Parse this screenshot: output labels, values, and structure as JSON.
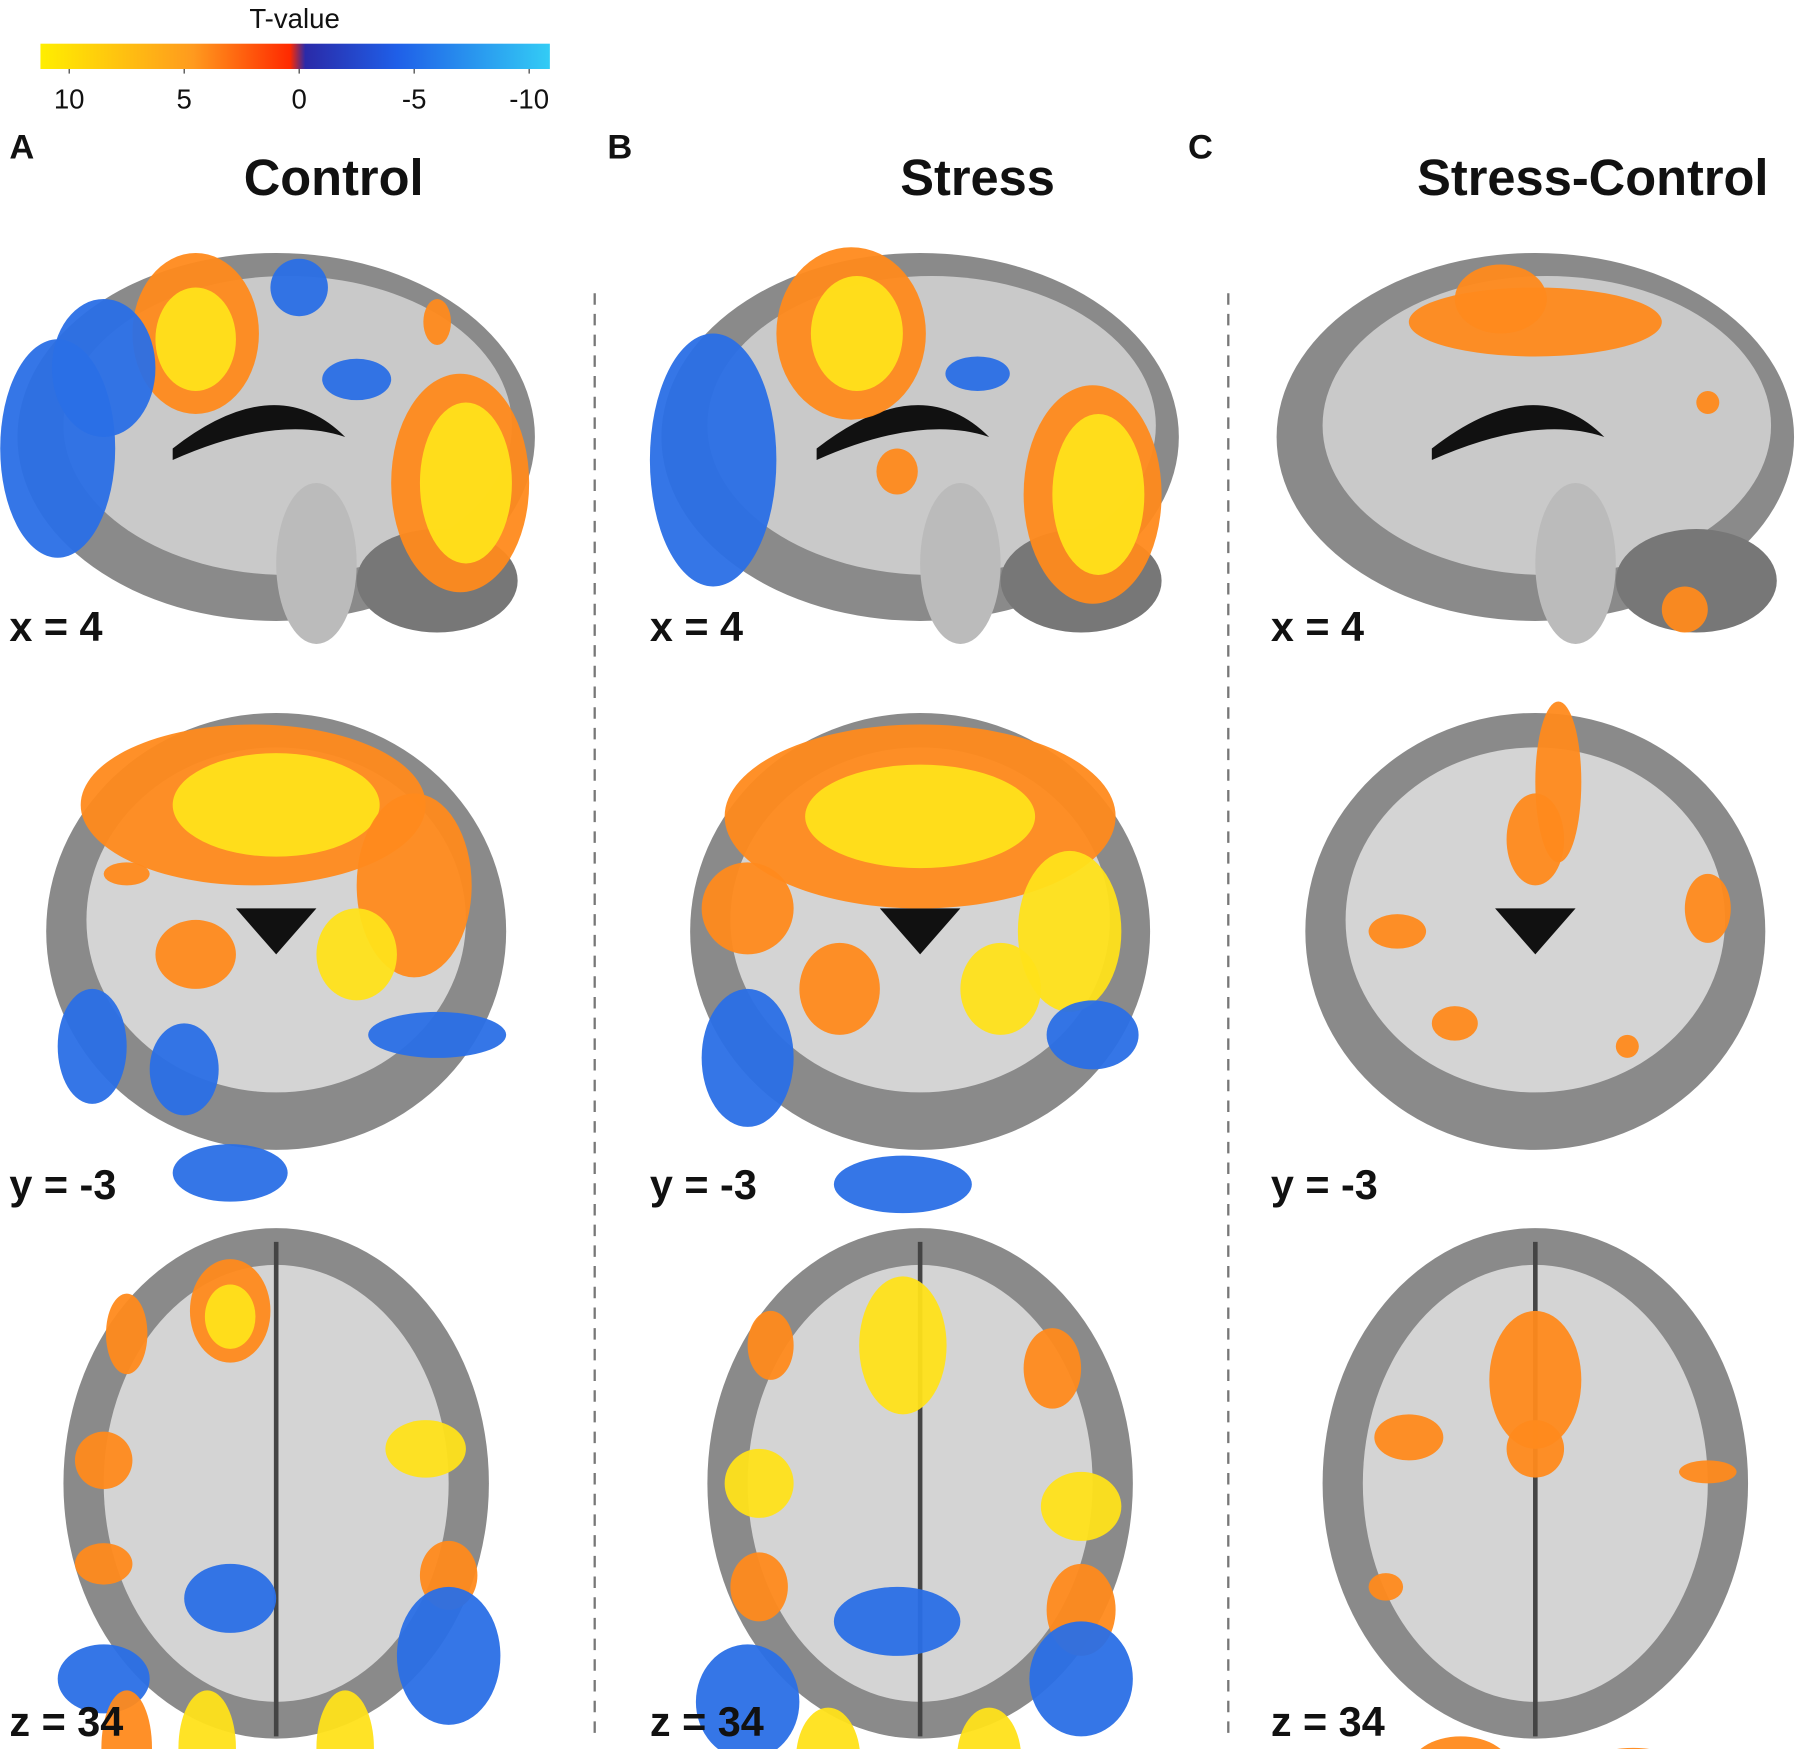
{
  "colorbar": {
    "title": "T-value",
    "ticks": [
      10,
      5,
      0,
      -5,
      -10
    ]
  },
  "panels": [
    {
      "letter": "A",
      "title": "Control",
      "slices": [
        "x = 4",
        "y = -3",
        "z = 34"
      ]
    },
    {
      "letter": "B",
      "title": "Stress",
      "slices": [
        "x = 4",
        "y = -3",
        "z = 34"
      ]
    },
    {
      "letter": "C",
      "title": "Stress-Control",
      "slices": [
        "x = 4",
        "y = -3",
        "z = 34"
      ]
    }
  ]
}
